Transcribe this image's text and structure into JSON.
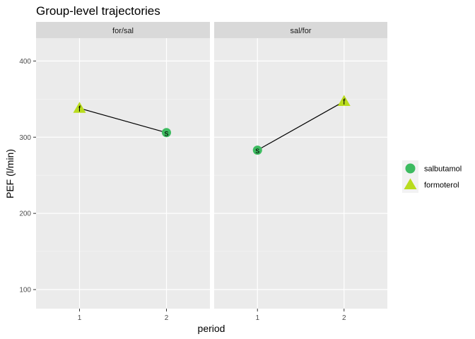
{
  "chart_data": {
    "type": "line",
    "title": "Group-level trajectories",
    "xlabel": "period",
    "ylabel": "PEF (l/min)",
    "ylim": [
      75,
      430
    ],
    "yticks": [
      100,
      200,
      300,
      400
    ],
    "xlim": [
      0.5,
      2.5
    ],
    "xticks": [
      1,
      2
    ],
    "grid": true,
    "legend_position": "right",
    "colors": {
      "salbutamol": "#3dbb60",
      "formoterol": "#b9dc1e",
      "line": "#000000",
      "panel_bg": "#ebebeb",
      "strip_bg": "#d9d9d9"
    },
    "legend": [
      {
        "name": "salbutamol",
        "shape": "circle",
        "color": "#3dbb60"
      },
      {
        "name": "formoterol",
        "shape": "triangle",
        "color": "#b9dc1e"
      }
    ],
    "facets": [
      {
        "label": "for/sal",
        "points": [
          {
            "x": 1,
            "y": 338,
            "treatment": "formoterol",
            "label": "f"
          },
          {
            "x": 2,
            "y": 306,
            "treatment": "salbutamol",
            "label": "s"
          }
        ]
      },
      {
        "label": "sal/for",
        "points": [
          {
            "x": 1,
            "y": 283,
            "treatment": "salbutamol",
            "label": "s"
          },
          {
            "x": 2,
            "y": 347,
            "treatment": "formoterol",
            "label": "f"
          }
        ]
      }
    ]
  }
}
